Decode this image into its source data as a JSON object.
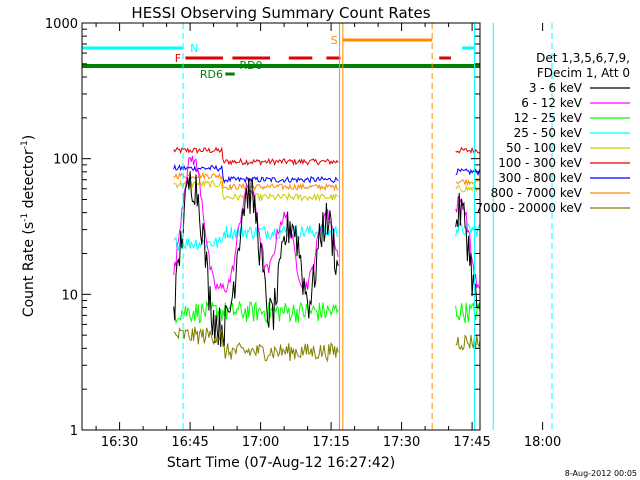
{
  "chart_data": {
    "type": "line",
    "title": "HESSI Observing Summary Count Rates",
    "xlabel": "Start Time (07-Aug-12 16:27:42)",
    "ylabel_main": "Count Rate (s",
    "ylabel_sup1": "-1",
    "ylabel_mid": " detector",
    "ylabel_sup2": "-1",
    "ylabel_end": ")",
    "date_stamp": "8-Aug-2012 00:05",
    "x_axis_minutes": [
      20,
      105
    ],
    "yscale": "log",
    "ylim": [
      1,
      1000
    ],
    "x_ticks": [
      {
        "m": 30,
        "label": "16:30"
      },
      {
        "m": 45,
        "label": "16:45"
      },
      {
        "m": 60,
        "label": "17:00"
      },
      {
        "m": 75,
        "label": "17:15"
      },
      {
        "m": 90,
        "label": "17:30"
      },
      {
        "m": 105,
        "label": "17:45"
      },
      {
        "m": 120,
        "label": "18:00"
      }
    ],
    "y_ticks": [
      {
        "v": 1,
        "label": "1"
      },
      {
        "v": 10,
        "label": "10"
      },
      {
        "v": 100,
        "label": "100"
      },
      {
        "v": 1000,
        "label": "1000"
      }
    ],
    "legend": {
      "header1": "Det 1,3,5,6,7,9,",
      "header2": "FDecim 1, Att 0",
      "entries": [
        {
          "label": "3 - 6 keV",
          "color": "#000000"
        },
        {
          "label": "6 - 12 keV",
          "color": "#ff00ff"
        },
        {
          "label": "12 - 25 keV",
          "color": "#00ff00"
        },
        {
          "label": "25 - 50 keV",
          "color": "#00ffff"
        },
        {
          "label": "50 - 100 keV",
          "color": "#cccc00"
        },
        {
          "label": "100 - 300 keV",
          "color": "#e00000"
        },
        {
          "label": "300 - 800 keV",
          "color": "#0000ff"
        },
        {
          "label": "800 - 7000 keV",
          "color": "#ff8c00"
        },
        {
          "label": "7000 - 20000 keV",
          "color": "#808000"
        }
      ]
    },
    "flags": [
      {
        "label": "N",
        "color": "#00ffff"
      },
      {
        "label": "S",
        "color": "#ff8c00"
      },
      {
        "label": "F",
        "color": "#e00000"
      },
      {
        "label": "RD0",
        "color": "#008000"
      },
      {
        "label": "RD6",
        "color": "#008000"
      }
    ],
    "series_levels": {
      "segment1_window_min": [
        41.5,
        76.5
      ],
      "segment2_window_min": [
        101.5,
        109.5
      ],
      "3-6": {
        "base": 10,
        "peaks": [
          [
            45.5,
            65
          ],
          [
            57.5,
            52
          ],
          [
            66.5,
            28
          ],
          [
            74,
            30
          ]
        ],
        "low": 6
      },
      "6-12": {
        "base": 11,
        "peaks": [
          [
            45.5,
            90
          ],
          [
            57.5,
            50
          ],
          [
            65,
            26
          ],
          [
            74,
            28
          ]
        ]
      },
      "12-25": {
        "base": 7.5
      },
      "25-50": {
        "base": 24,
        "seg1_later": 29,
        "seg2": 30
      },
      "50-100": {
        "base": 65,
        "seg1_later": 52,
        "seg2": 60
      },
      "100-300": {
        "base": 115,
        "seg1_later": 95,
        "seg2": 115
      },
      "300-800": {
        "base": 85,
        "seg1_later": 70,
        "seg2": 80
      },
      "800-7000": {
        "base": 75,
        "seg1_later": 62,
        "seg2": 68
      },
      "7000-20000": {
        "base": 5,
        "seg1_later": 3.8,
        "seg2": 4.5
      }
    }
  }
}
